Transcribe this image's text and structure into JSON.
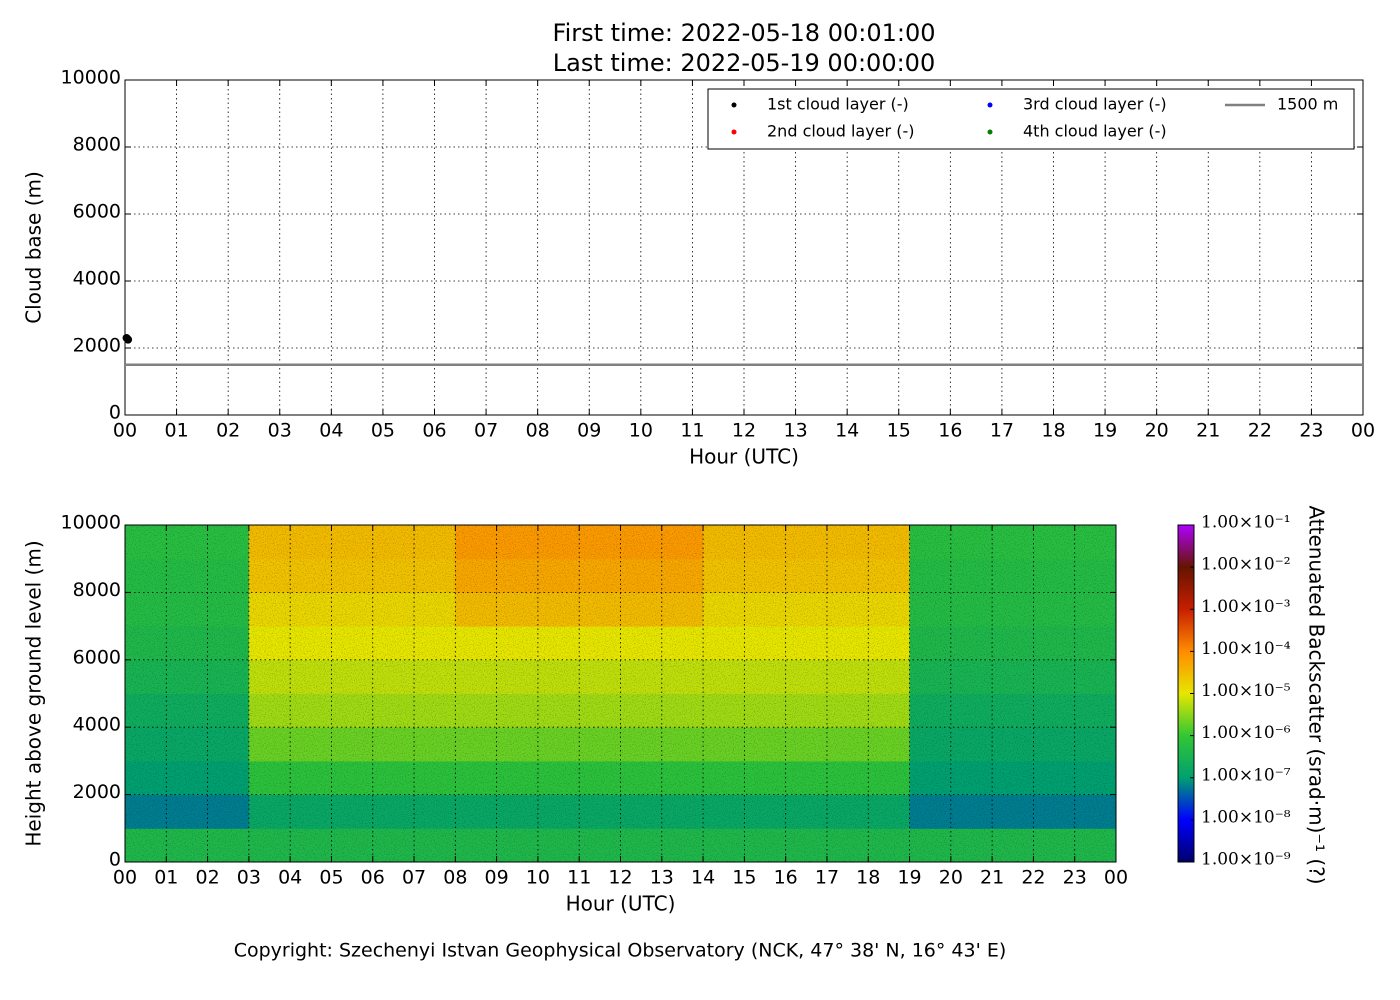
{
  "chart_data": [
    {
      "type": "scatter",
      "title": "First time: 2022-05-18 00:01:00",
      "subtitle": "Last time: 2022-05-19 00:00:00",
      "x_label": "Hour (UTC)",
      "y_label": "Cloud base (m)",
      "xlim": [
        0,
        24
      ],
      "ylim": [
        0,
        10000
      ],
      "xticks": [
        {
          "value": 0,
          "label": "00"
        },
        {
          "value": 1,
          "label": "01"
        },
        {
          "value": 2,
          "label": "02"
        },
        {
          "value": 3,
          "label": "03"
        },
        {
          "value": 4,
          "label": "04"
        },
        {
          "value": 5,
          "label": "05"
        },
        {
          "value": 6,
          "label": "06"
        },
        {
          "value": 7,
          "label": "07"
        },
        {
          "value": 8,
          "label": "08"
        },
        {
          "value": 9,
          "label": "09"
        },
        {
          "value": 10,
          "label": "10"
        },
        {
          "value": 11,
          "label": "11"
        },
        {
          "value": 12,
          "label": "12"
        },
        {
          "value": 13,
          "label": "13"
        },
        {
          "value": 14,
          "label": "14"
        },
        {
          "value": 15,
          "label": "15"
        },
        {
          "value": 16,
          "label": "16"
        },
        {
          "value": 17,
          "label": "17"
        },
        {
          "value": 18,
          "label": "18"
        },
        {
          "value": 19,
          "label": "19"
        },
        {
          "value": 20,
          "label": "20"
        },
        {
          "value": 21,
          "label": "21"
        },
        {
          "value": 22,
          "label": "22"
        },
        {
          "value": 23,
          "label": "23"
        },
        {
          "value": 24,
          "label": "00"
        }
      ],
      "yticks": [
        0,
        2000,
        4000,
        6000,
        8000,
        10000
      ],
      "grid": true,
      "legend": "upper right",
      "series": [
        {
          "name": "1st cloud layer (-)",
          "color": "#000000",
          "x": [
            0.03,
            0.06
          ],
          "values": [
            2300,
            2250
          ]
        },
        {
          "name": "2nd cloud layer (-)",
          "color": "#ff0000",
          "x": [],
          "values": []
        },
        {
          "name": "3rd cloud layer (-)",
          "color": "#0000ff",
          "x": [],
          "values": []
        },
        {
          "name": "4th cloud layer (-)",
          "color": "#008000",
          "x": [],
          "values": []
        }
      ],
      "reference_lines": [
        {
          "name": "1500 m",
          "value": 1500,
          "color": "#808080"
        }
      ]
    },
    {
      "type": "heatmap",
      "x_label": "Hour (UTC)",
      "y_label": "Height above ground level (m)",
      "colorbar_label": "Attenuated Backscatter (srad·m)⁻¹ (?)",
      "footer": "Copyright: Szechenyi Istvan Geophysical Observatory (NCK, 47° 38' N, 16° 43' E)",
      "xlim": [
        0,
        24
      ],
      "ylim": [
        0,
        10000
      ],
      "xticks": [
        {
          "value": 0,
          "label": "00"
        },
        {
          "value": 1,
          "label": "01"
        },
        {
          "value": 2,
          "label": "02"
        },
        {
          "value": 3,
          "label": "03"
        },
        {
          "value": 4,
          "label": "04"
        },
        {
          "value": 5,
          "label": "05"
        },
        {
          "value": 6,
          "label": "06"
        },
        {
          "value": 7,
          "label": "07"
        },
        {
          "value": 8,
          "label": "08"
        },
        {
          "value": 9,
          "label": "09"
        },
        {
          "value": 10,
          "label": "10"
        },
        {
          "value": 11,
          "label": "11"
        },
        {
          "value": 12,
          "label": "12"
        },
        {
          "value": 13,
          "label": "13"
        },
        {
          "value": 14,
          "label": "14"
        },
        {
          "value": 15,
          "label": "15"
        },
        {
          "value": 16,
          "label": "16"
        },
        {
          "value": 17,
          "label": "17"
        },
        {
          "value": 18,
          "label": "18"
        },
        {
          "value": 19,
          "label": "19"
        },
        {
          "value": 20,
          "label": "20"
        },
        {
          "value": 21,
          "label": "21"
        },
        {
          "value": 22,
          "label": "22"
        },
        {
          "value": 23,
          "label": "23"
        },
        {
          "value": 24,
          "label": "00"
        }
      ],
      "yticks": [
        0,
        2000,
        4000,
        6000,
        8000,
        10000
      ],
      "grid": true,
      "x_bins": [
        0,
        1,
        2,
        3,
        4,
        5,
        6,
        7,
        8,
        9,
        10,
        11,
        12,
        13,
        14,
        15,
        16,
        17,
        18,
        19,
        20,
        21,
        22,
        23,
        24
      ],
      "y_bins": [
        0,
        1000,
        2000,
        3000,
        4000,
        5000,
        6000,
        7000,
        8000,
        9000,
        10000
      ],
      "values": [
        [
          4e-07,
          4e-07,
          4e-07,
          4e-07,
          4e-07,
          4e-07,
          4e-07,
          4e-07,
          4e-07,
          4e-07,
          4e-07,
          4e-07,
          4e-07,
          4e-07,
          4e-07,
          4e-07,
          4e-07,
          4e-07,
          4e-07,
          4e-07,
          4e-07,
          4e-07,
          4e-07,
          4e-07
        ],
        [
          6e-08,
          6e-08,
          6e-08,
          1.5e-07,
          1.5e-07,
          1.5e-07,
          1.5e-07,
          1.5e-07,
          1.5e-07,
          1.5e-07,
          1.5e-07,
          1.5e-07,
          1.5e-07,
          1.5e-07,
          1.5e-07,
          1.5e-07,
          1.5e-07,
          1.5e-07,
          1.5e-07,
          6e-08,
          6e-08,
          6e-08,
          6e-08,
          6e-08
        ],
        [
          1e-07,
          1e-07,
          1e-07,
          7e-07,
          7e-07,
          7e-07,
          7e-07,
          7e-07,
          7e-07,
          7e-07,
          7e-07,
          7e-07,
          7e-07,
          7e-07,
          7e-07,
          7e-07,
          7e-07,
          7e-07,
          7e-07,
          1e-07,
          1e-07,
          1e-07,
          1e-07,
          1e-07
        ],
        [
          1.5e-07,
          1.5e-07,
          1.5e-07,
          2e-06,
          2e-06,
          2e-06,
          2e-06,
          2e-06,
          2e-06,
          2e-06,
          2e-06,
          2e-06,
          2e-06,
          2e-06,
          2e-06,
          2e-06,
          2e-06,
          2e-06,
          2e-06,
          1.5e-07,
          1.5e-07,
          1.5e-07,
          1.5e-07,
          1.5e-07
        ],
        [
          2e-07,
          2e-07,
          2e-07,
          4e-06,
          4e-06,
          4e-06,
          4e-06,
          4e-06,
          4e-06,
          4e-06,
          4e-06,
          4e-06,
          4e-06,
          4e-06,
          4e-06,
          4e-06,
          4e-06,
          4e-06,
          4e-06,
          2e-07,
          2e-07,
          2e-07,
          2e-07,
          2e-07
        ],
        [
          3e-07,
          3e-07,
          3e-07,
          6e-06,
          6e-06,
          6e-06,
          6e-06,
          6e-06,
          6e-06,
          6e-06,
          6e-06,
          6e-06,
          6e-06,
          6e-06,
          6e-06,
          6e-06,
          6e-06,
          6e-06,
          6e-06,
          3e-07,
          3e-07,
          3e-07,
          3e-07,
          3e-07
        ],
        [
          4e-07,
          4e-07,
          4e-07,
          1e-05,
          1e-05,
          1e-05,
          1e-05,
          1e-05,
          1e-05,
          1e-05,
          1e-05,
          1e-05,
          1e-05,
          1e-05,
          1e-05,
          1e-05,
          1e-05,
          1e-05,
          1e-05,
          4e-07,
          4e-07,
          4e-07,
          4e-07,
          4e-07
        ],
        [
          5e-07,
          5e-07,
          5e-07,
          1.5e-05,
          1.5e-05,
          1.5e-05,
          1.5e-05,
          1.5e-05,
          3e-05,
          3e-05,
          3e-05,
          3e-05,
          3e-05,
          3e-05,
          1.5e-05,
          1.5e-05,
          1.5e-05,
          1.5e-05,
          1.5e-05,
          5e-07,
          5e-07,
          5e-07,
          5e-07,
          5e-07
        ],
        [
          5e-07,
          5e-07,
          5e-07,
          2.5e-05,
          2.5e-05,
          2.5e-05,
          2.5e-05,
          2.5e-05,
          5e-05,
          5e-05,
          5e-05,
          5e-05,
          5e-05,
          5e-05,
          2.5e-05,
          2.5e-05,
          2.5e-05,
          2.5e-05,
          2.5e-05,
          5e-07,
          5e-07,
          5e-07,
          5e-07,
          5e-07
        ],
        [
          6e-07,
          6e-07,
          6e-07,
          3e-05,
          3e-05,
          3e-05,
          3e-05,
          3e-05,
          7e-05,
          7e-05,
          7e-05,
          7e-05,
          7e-05,
          7e-05,
          3e-05,
          3e-05,
          3e-05,
          3e-05,
          3e-05,
          6e-07,
          6e-07,
          6e-07,
          6e-07,
          6e-07
        ]
      ],
      "color_scale": "log",
      "clim": [
        1e-09,
        0.1
      ],
      "colormap": [
        "#00006a",
        "#0000ff",
        "#00a070",
        "#33c733",
        "#e6e600",
        "#ff8c00",
        "#c81e00",
        "#641400",
        "#b000ff"
      ],
      "colorbar_ticks": [
        {
          "value": 1e-09,
          "label": "1.00×10⁻⁹"
        },
        {
          "value": 1e-08,
          "label": "1.00×10⁻⁸"
        },
        {
          "value": 1e-07,
          "label": "1.00×10⁻⁷"
        },
        {
          "value": 1e-06,
          "label": "1.00×10⁻⁶"
        },
        {
          "value": 1e-05,
          "label": "1.00×10⁻⁵"
        },
        {
          "value": 0.0001,
          "label": "1.00×10⁻⁴"
        },
        {
          "value": 0.001,
          "label": "1.00×10⁻³"
        },
        {
          "value": 0.01,
          "label": "1.00×10⁻²"
        },
        {
          "value": 0.1,
          "label": "1.00×10⁻¹"
        }
      ]
    }
  ]
}
